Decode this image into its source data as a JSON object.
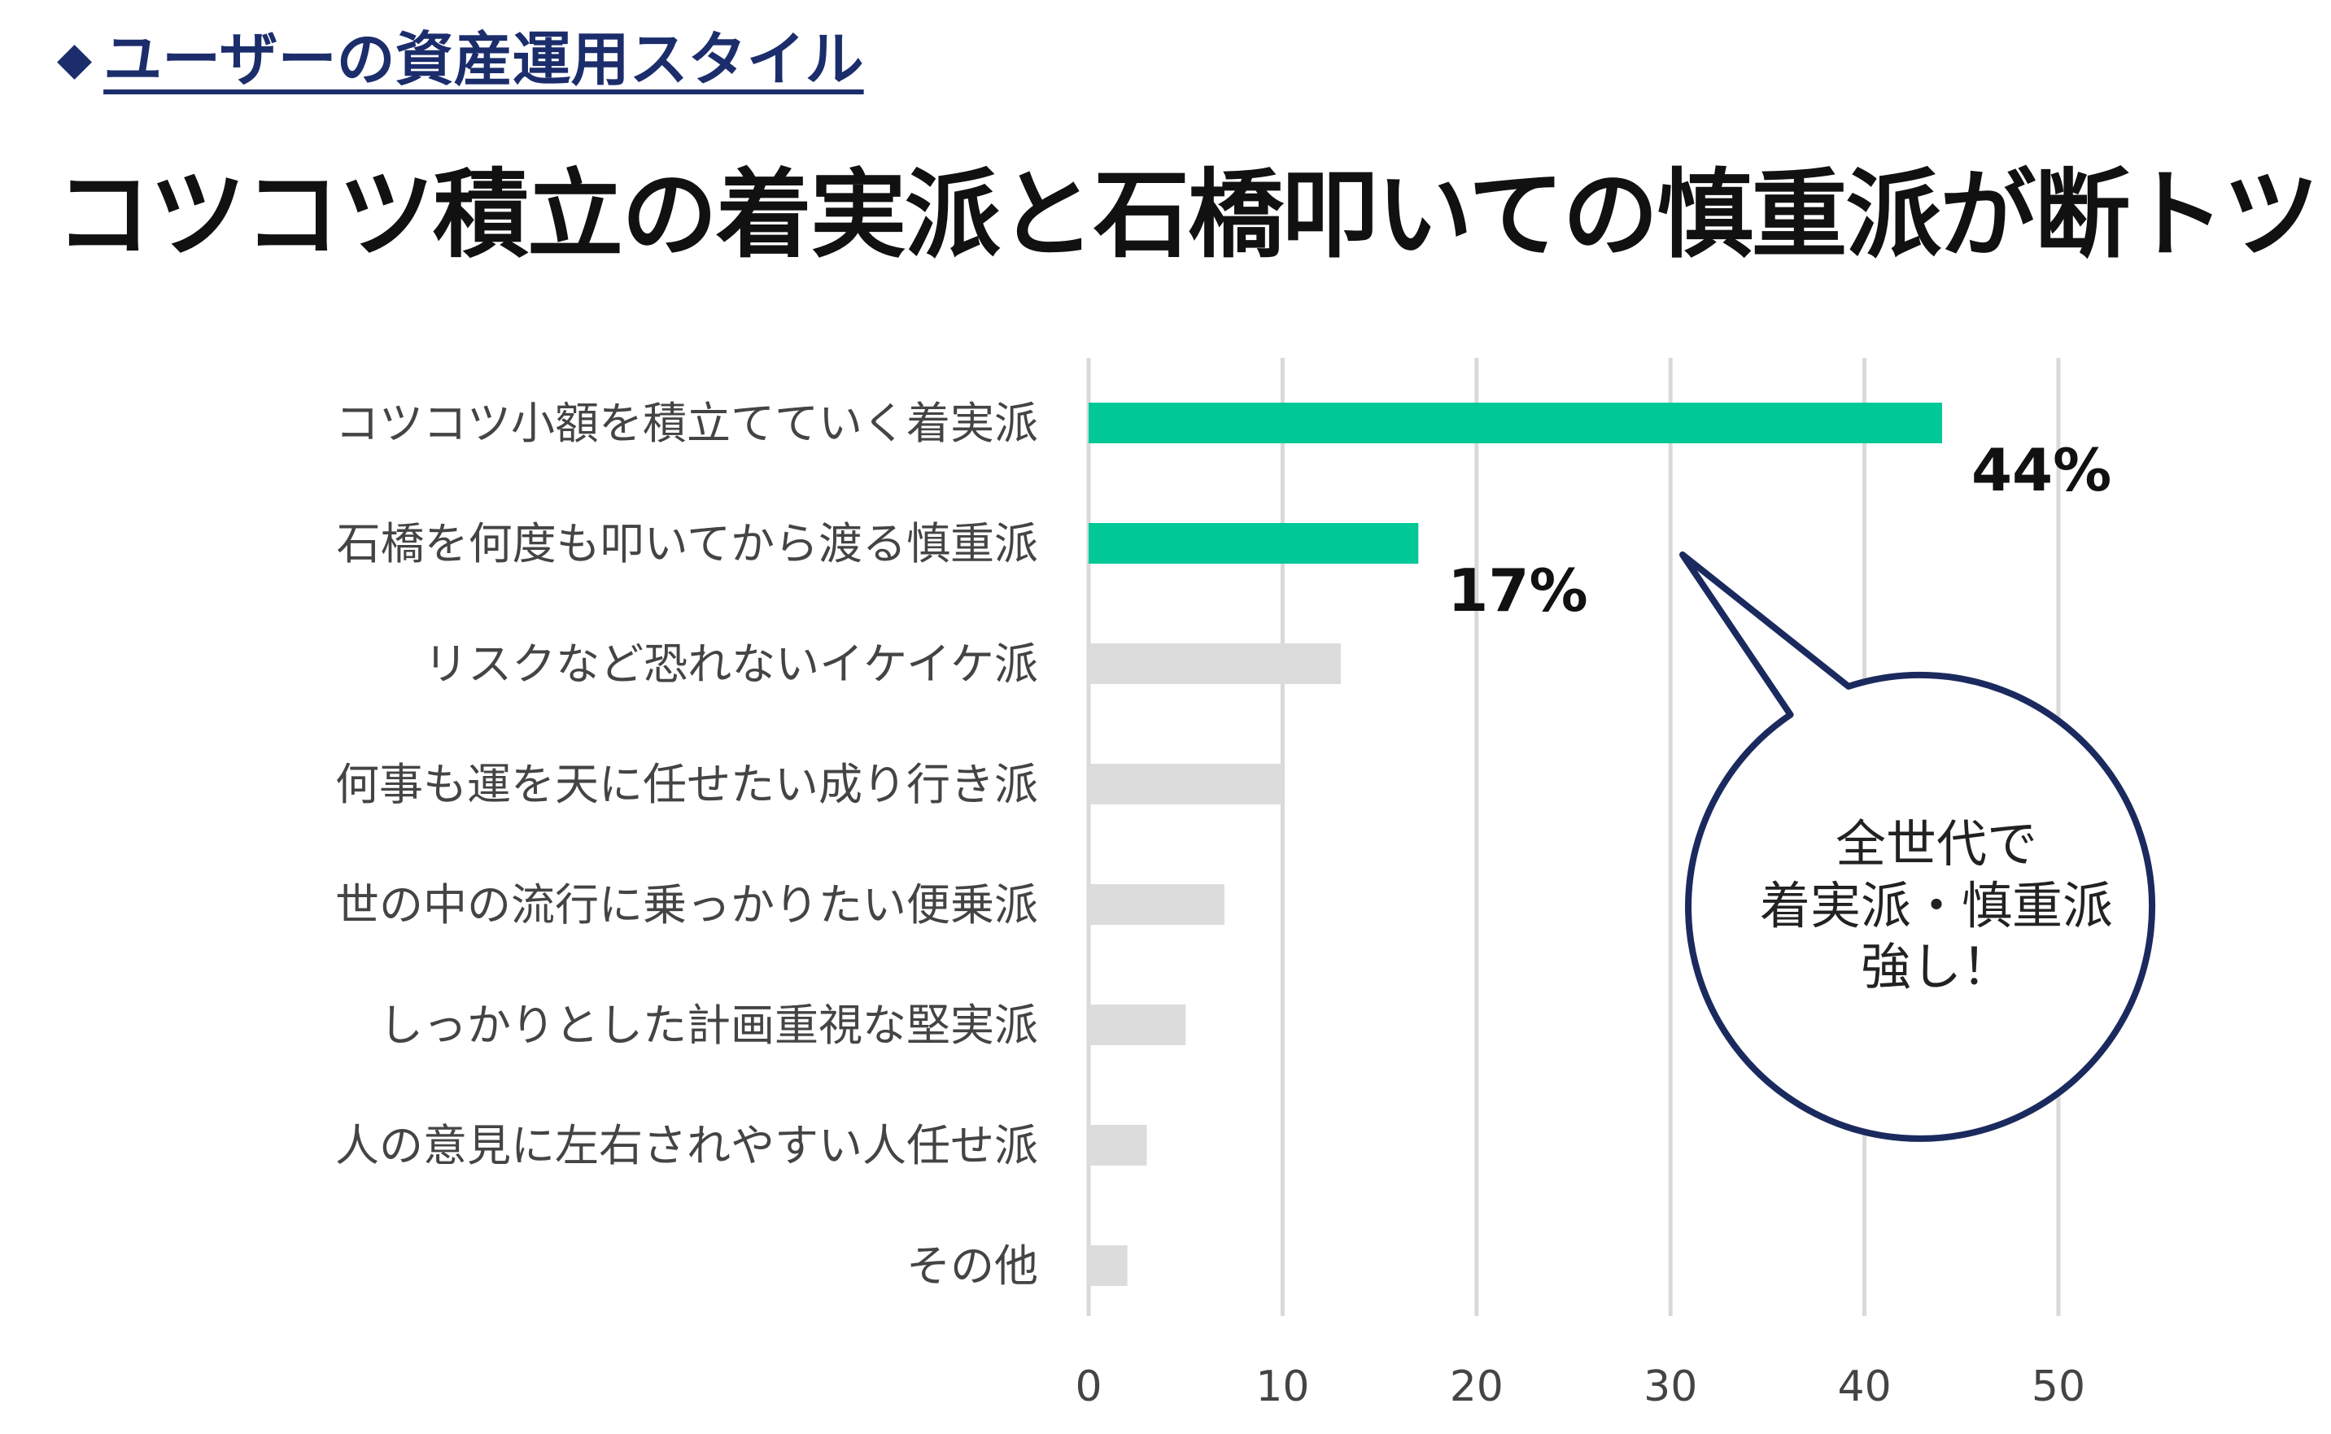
{
  "header": {
    "bullet": "◆",
    "section_title": "ユーザーの資産運用スタイル"
  },
  "title": "コツコツ積立の着実派と石橋叩いての慎重派が断トツ",
  "chart_data": {
    "type": "bar",
    "orientation": "horizontal",
    "categories": [
      "コツコツ小額を積立てていく着実派",
      "石橋を何度も叩いてから渡る慎重派",
      "リスクなど恐れないイケイケ派",
      "何事も運を天に任せたい成り行き派",
      "世の中の流行に乗っかりたい便乗派",
      "しっかりとした計画重視な堅実派",
      "人の意見に左右されやすい人任せ派",
      "その他"
    ],
    "values": [
      44,
      17,
      13,
      10,
      7,
      5,
      3,
      2
    ],
    "highlighted": [
      true,
      true,
      false,
      false,
      false,
      false,
      false,
      false
    ],
    "data_labels": [
      "44%",
      "17%",
      "",
      "",
      "",
      "",
      "",
      ""
    ],
    "xlim": [
      0,
      50
    ],
    "xticks": [
      0,
      10,
      20,
      30,
      40,
      50
    ],
    "grid": "vertical",
    "colors": {
      "highlight": "#00c896",
      "default": "#dcdcdc",
      "grid": "#d9d9d9"
    }
  },
  "callout": {
    "lines": [
      "全世代で",
      "着実派・慎重派",
      "強し！"
    ],
    "border_color": "#1b2a5e"
  }
}
